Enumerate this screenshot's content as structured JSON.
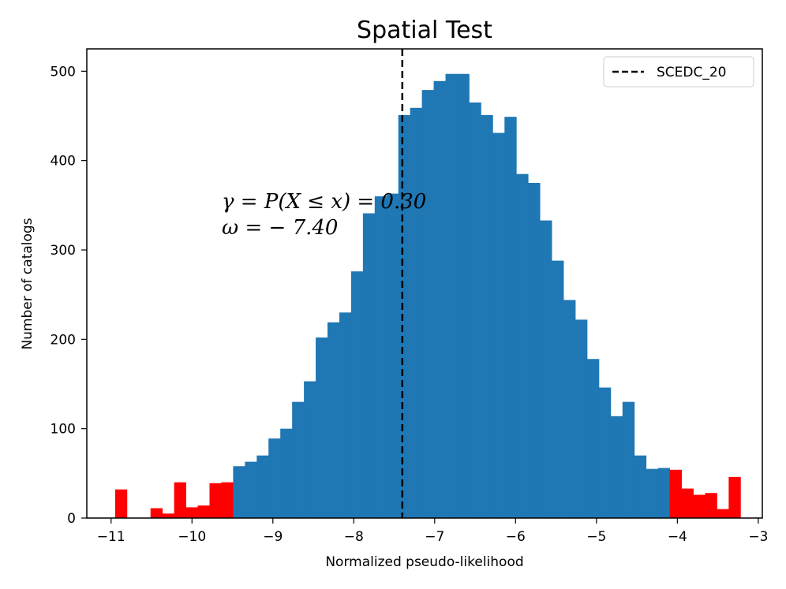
{
  "chart_data": {
    "type": "histogram",
    "title": "Spatial Test",
    "xlabel": "Normalized pseudo-likelihood",
    "ylabel": "Number of catalogs",
    "xlim": [
      -11.3,
      -2.95
    ],
    "ylim": [
      0,
      525
    ],
    "xticks": [
      -11,
      -10,
      -9,
      -8,
      -7,
      -6,
      -5,
      -4,
      -3
    ],
    "xtick_labels": [
      "−11",
      "−10",
      "−9",
      "−8",
      "−7",
      "−6",
      "−5",
      "−4",
      "−3"
    ],
    "yticks": [
      0,
      100,
      200,
      300,
      400,
      500
    ],
    "ytick_labels": [
      "0",
      "100",
      "200",
      "300",
      "400",
      "500"
    ],
    "bin_start": -10.95,
    "bin_end": -3.22,
    "bin_width": 0.1466,
    "counts": [
      32,
      0,
      0,
      11,
      5,
      40,
      12,
      14,
      39,
      40,
      58,
      63,
      70,
      89,
      100,
      130,
      153,
      202,
      219,
      230,
      276,
      341,
      360,
      363,
      451,
      459,
      479,
      489,
      497,
      497,
      465,
      451,
      431,
      449,
      385,
      375,
      333,
      288,
      244,
      222,
      178,
      146,
      114,
      130,
      70,
      55,
      56,
      54,
      33,
      26,
      28,
      10,
      46
    ],
    "bar_colors": {
      "tail": "#ff0000",
      "body": "#1f77b4"
    },
    "tail_ranges": [
      [
        -11.0,
        -9.43
      ],
      [
        -4.12,
        -3.2
      ]
    ],
    "observed": {
      "x": -7.4,
      "name": "SCEDC_20",
      "line_color": "#000000",
      "line_style": "dashed"
    },
    "annotations": {
      "line1": "γ = P(X ≤ x) = 0.30",
      "line2": "ω = − 7.40"
    },
    "legend": {
      "placement": "top-right",
      "entries": [
        "SCEDC_20"
      ]
    },
    "grid": false
  }
}
